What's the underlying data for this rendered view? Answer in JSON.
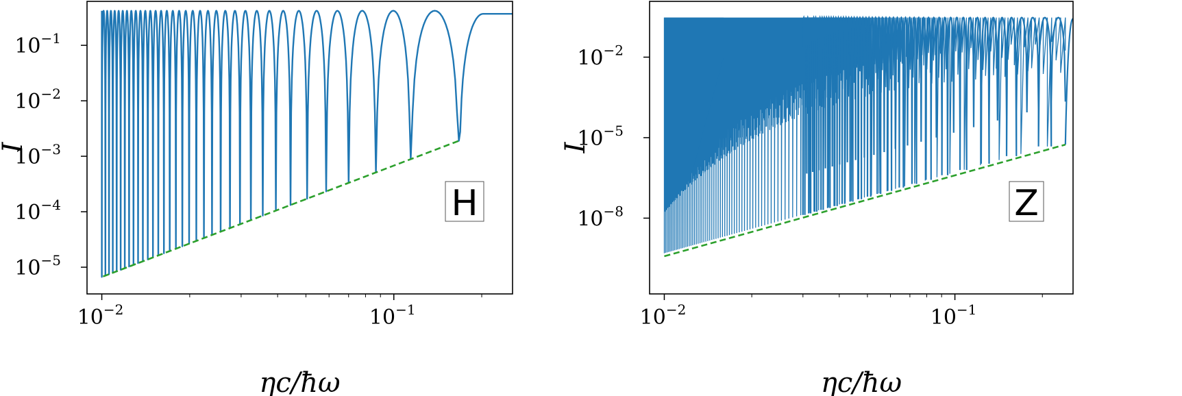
{
  "chart_data": [
    {
      "type": "line",
      "panel_label": "H",
      "xlabel": "ηc/ħω",
      "ylabel": "I",
      "xscale": "log",
      "yscale": "log",
      "xlim": [
        0.0089,
        0.255
      ],
      "ylim": [
        3.3e-06,
        0.62
      ],
      "x_ticks": [
        {
          "value": 0.01,
          "base": "10",
          "exp": "−2"
        },
        {
          "value": 0.1,
          "base": "10",
          "exp": "−1"
        }
      ],
      "y_ticks": [
        {
          "value": 1e-05,
          "base": "10",
          "exp": "−5"
        },
        {
          "value": 0.0001,
          "base": "10",
          "exp": "−4"
        },
        {
          "value": 0.001,
          "base": "10",
          "exp": "−3"
        },
        {
          "value": 0.01,
          "base": "10",
          "exp": "−2"
        },
        {
          "value": 0.1,
          "base": "10",
          "exp": "−1"
        }
      ],
      "series": [
        {
          "style": "solid",
          "color": "#1f77b4",
          "description_values": {
            "peak_level": 0.42,
            "dip_positions_start": 0.01,
            "dip_positions_end": 0.167,
            "n_dips": 35
          }
        },
        {
          "style": "dashed",
          "color": "#2ca02c",
          "x": [
            0.0101,
            0.167
          ],
          "y": [
            6.8e-06,
            0.0019
          ]
        }
      ],
      "grid": false,
      "legend": "none"
    },
    {
      "type": "line",
      "panel_label": "Z",
      "xlabel": "ηc/ħω",
      "ylabel": "I",
      "xscale": "log",
      "yscale": "log",
      "xlim": [
        0.0089,
        0.255
      ],
      "ylim": [
        1.5e-11,
        1.2
      ],
      "x_ticks": [
        {
          "value": 0.01,
          "base": "10",
          "exp": "−2"
        },
        {
          "value": 0.1,
          "base": "10",
          "exp": "−1"
        }
      ],
      "y_ticks": [
        {
          "value": 1e-08,
          "base": "10",
          "exp": "−8"
        },
        {
          "value": 1e-05,
          "base": "10",
          "exp": "−5"
        },
        {
          "value": 0.01,
          "base": "10",
          "exp": "−2"
        }
      ],
      "series": [
        {
          "style": "solid",
          "color": "#1f77b4",
          "description_values": {
            "peak_level": 0.3,
            "dip_positions_start": 0.01,
            "dip_positions_end": 0.24
          }
        },
        {
          "style": "dashed",
          "color": "#2ca02c",
          "x": [
            0.01,
            0.24
          ],
          "y": [
            3.8e-10,
            5.5e-06
          ]
        }
      ],
      "grid": false,
      "legend": "none"
    }
  ],
  "colors": {
    "main_curve": "#1f77b4",
    "envelope": "#2ca02c",
    "frame": "#000000"
  }
}
